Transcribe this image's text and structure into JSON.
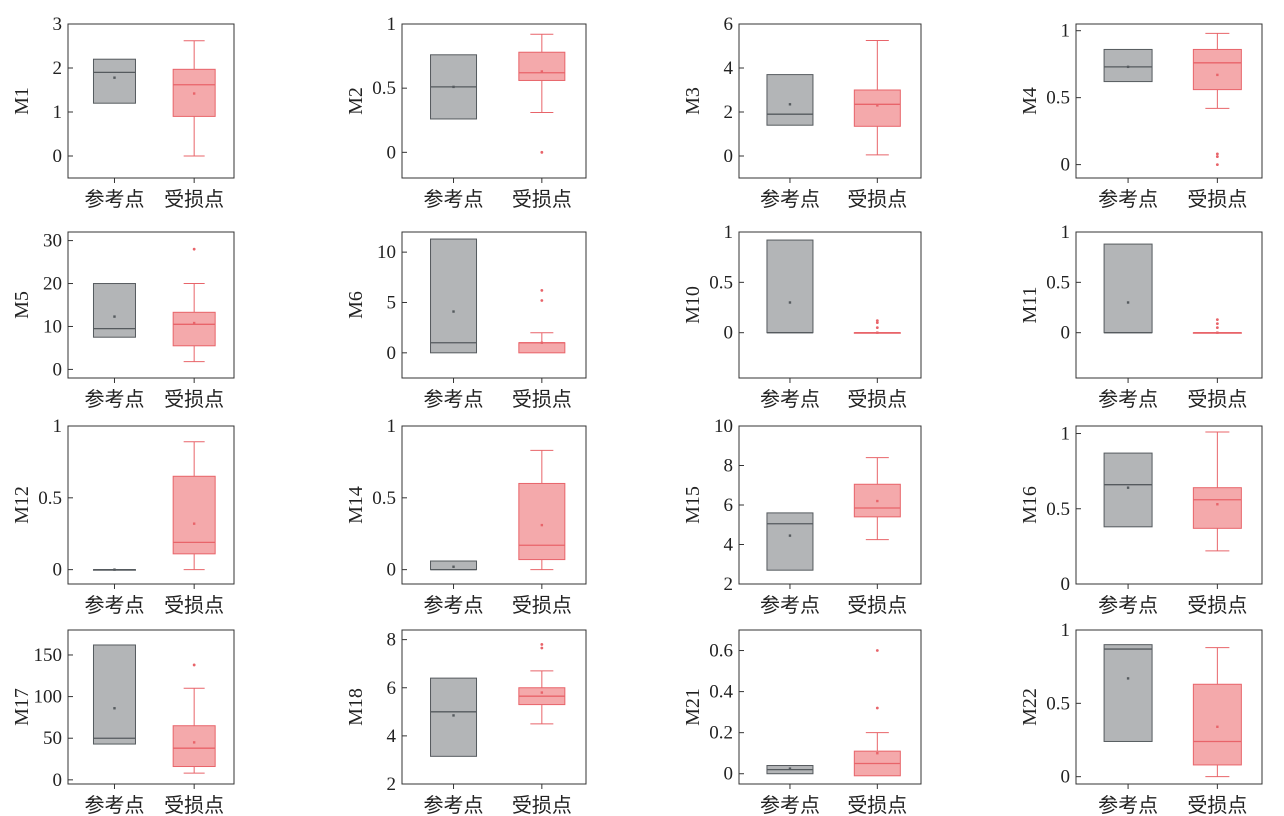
{
  "chart_data": {
    "type": "box",
    "colors": {
      "ref_fill": "#b3b5b7",
      "ref_line": "#555a5e",
      "dmg_fill": "#f4a9ab",
      "dmg_line": "#e8646a",
      "axis": "#333333"
    },
    "categories": [
      "参考点",
      "受损点"
    ],
    "panels": [
      {
        "ylabel": "M1",
        "ylim": [
          -0.5,
          3
        ],
        "yticks": [
          0,
          1,
          2,
          3
        ],
        "boxes": [
          {
            "q1": 1.2,
            "median": 1.9,
            "q3": 2.2,
            "mean": 1.78,
            "min": null,
            "max": null,
            "outliers": []
          },
          {
            "q1": 0.9,
            "median": 1.62,
            "q3": 1.97,
            "mean": 1.42,
            "min": 0.0,
            "max": 2.62,
            "outliers": []
          }
        ]
      },
      {
        "ylabel": "M2",
        "ylim": [
          -0.2,
          1.0
        ],
        "yticks": [
          0,
          0.5,
          1.0
        ],
        "boxes": [
          {
            "q1": 0.26,
            "median": 0.51,
            "q3": 0.76,
            "mean": 0.51,
            "min": null,
            "max": null,
            "outliers": []
          },
          {
            "q1": 0.56,
            "median": 0.62,
            "q3": 0.78,
            "mean": 0.63,
            "min": 0.31,
            "max": 0.92,
            "outliers": [
              0.0
            ]
          }
        ]
      },
      {
        "ylabel": "M3",
        "ylim": [
          -1,
          6
        ],
        "yticks": [
          0,
          2,
          4,
          6
        ],
        "boxes": [
          {
            "q1": 1.4,
            "median": 1.9,
            "q3": 3.7,
            "mean": 2.35,
            "min": null,
            "max": null,
            "outliers": []
          },
          {
            "q1": 1.35,
            "median": 2.35,
            "q3": 3.0,
            "mean": 2.3,
            "min": 0.05,
            "max": 5.25,
            "outliers": []
          }
        ]
      },
      {
        "ylabel": "M4",
        "ylim": [
          -0.1,
          1.05
        ],
        "yticks": [
          0,
          0.5,
          1.0
        ],
        "boxes": [
          {
            "q1": 0.62,
            "median": 0.73,
            "q3": 0.86,
            "mean": 0.73,
            "min": null,
            "max": null,
            "outliers": []
          },
          {
            "q1": 0.56,
            "median": 0.76,
            "q3": 0.86,
            "mean": 0.67,
            "min": 0.42,
            "max": 0.98,
            "outliers": [
              0.08,
              0.06,
              0.0
            ]
          }
        ]
      },
      {
        "ylabel": "M5",
        "ylim": [
          -2,
          32
        ],
        "yticks": [
          0,
          10,
          20,
          30
        ],
        "boxes": [
          {
            "q1": 7.5,
            "median": 9.5,
            "q3": 20.0,
            "mean": 12.3,
            "min": null,
            "max": null,
            "outliers": []
          },
          {
            "q1": 5.5,
            "median": 10.5,
            "q3": 13.3,
            "mean": 10.8,
            "min": 1.8,
            "max": 20.0,
            "outliers": [
              28.0
            ]
          }
        ]
      },
      {
        "ylabel": "M6",
        "ylim": [
          -2.5,
          12
        ],
        "yticks": [
          0,
          5,
          10
        ],
        "boxes": [
          {
            "q1": 0.0,
            "median": 1.0,
            "q3": 11.3,
            "mean": 4.1,
            "min": null,
            "max": null,
            "outliers": []
          },
          {
            "q1": 0.0,
            "median": 1.0,
            "q3": 1.0,
            "mean": 1.0,
            "min": 0.0,
            "max": 2.0,
            "outliers": [
              5.2,
              6.2
            ]
          }
        ]
      },
      {
        "ylabel": "M10",
        "ylim": [
          -0.45,
          1.0
        ],
        "yticks": [
          0,
          0.5,
          1.0
        ],
        "boxes": [
          {
            "q1": 0.0,
            "median": 0.0,
            "q3": 0.92,
            "mean": 0.3,
            "min": null,
            "max": null,
            "outliers": []
          },
          {
            "q1": 0.0,
            "median": 0.0,
            "q3": 0.0,
            "mean": 0.0,
            "min": 0.0,
            "max": 0.0,
            "outliers": [
              0.05,
              0.1,
              0.12
            ]
          }
        ]
      },
      {
        "ylabel": "M11",
        "ylim": [
          -0.45,
          1.0
        ],
        "yticks": [
          0,
          0.5,
          1.0
        ],
        "boxes": [
          {
            "q1": 0.0,
            "median": 0.0,
            "q3": 0.88,
            "mean": 0.3,
            "min": null,
            "max": null,
            "outliers": []
          },
          {
            "q1": 0.0,
            "median": 0.0,
            "q3": 0.0,
            "mean": 0.0,
            "min": 0.0,
            "max": 0.0,
            "outliers": [
              0.05,
              0.09,
              0.13
            ]
          }
        ]
      },
      {
        "ylabel": "M12",
        "ylim": [
          -0.1,
          1.0
        ],
        "yticks": [
          0,
          0.5,
          1.0
        ],
        "boxes": [
          {
            "q1": 0.0,
            "median": 0.0,
            "q3": 0.0,
            "mean": 0.0,
            "min": null,
            "max": null,
            "outliers": []
          },
          {
            "q1": 0.11,
            "median": 0.19,
            "q3": 0.65,
            "mean": 0.32,
            "min": 0.0,
            "max": 0.89,
            "outliers": []
          }
        ]
      },
      {
        "ylabel": "M14",
        "ylim": [
          -0.1,
          1.0
        ],
        "yticks": [
          0,
          0.5,
          1.0
        ],
        "boxes": [
          {
            "q1": 0.0,
            "median": 0.0,
            "q3": 0.06,
            "mean": 0.02,
            "min": null,
            "max": null,
            "outliers": []
          },
          {
            "q1": 0.07,
            "median": 0.17,
            "q3": 0.6,
            "mean": 0.31,
            "min": 0.0,
            "max": 0.83,
            "outliers": []
          }
        ]
      },
      {
        "ylabel": "M15",
        "ylim": [
          2,
          10
        ],
        "yticks": [
          2,
          4,
          6,
          8,
          10
        ],
        "boxes": [
          {
            "q1": 2.7,
            "median": 5.05,
            "q3": 5.6,
            "mean": 4.45,
            "min": null,
            "max": null,
            "outliers": []
          },
          {
            "q1": 5.4,
            "median": 5.85,
            "q3": 7.05,
            "mean": 6.2,
            "min": 4.25,
            "max": 8.4,
            "outliers": []
          }
        ]
      },
      {
        "ylabel": "M16",
        "ylim": [
          0,
          1.05
        ],
        "yticks": [
          0,
          0.5,
          1.0
        ],
        "boxes": [
          {
            "q1": 0.38,
            "median": 0.66,
            "q3": 0.87,
            "mean": 0.64,
            "min": null,
            "max": null,
            "outliers": []
          },
          {
            "q1": 0.37,
            "median": 0.56,
            "q3": 0.64,
            "mean": 0.53,
            "min": 0.22,
            "max": 1.01,
            "outliers": []
          }
        ]
      },
      {
        "ylabel": "M17",
        "ylim": [
          -5,
          180
        ],
        "yticks": [
          0,
          50,
          100,
          150
        ],
        "boxes": [
          {
            "q1": 43,
            "median": 50,
            "q3": 162,
            "mean": 86,
            "min": null,
            "max": null,
            "outliers": []
          },
          {
            "q1": 16,
            "median": 38,
            "q3": 65,
            "mean": 45,
            "min": 8,
            "max": 110,
            "outliers": [
              138
            ]
          }
        ]
      },
      {
        "ylabel": "M18",
        "ylim": [
          2,
          8.4
        ],
        "yticks": [
          2,
          4,
          6,
          8
        ],
        "boxes": [
          {
            "q1": 3.15,
            "median": 5.0,
            "q3": 6.4,
            "mean": 4.85,
            "min": null,
            "max": null,
            "outliers": []
          },
          {
            "q1": 5.3,
            "median": 5.65,
            "q3": 6.0,
            "mean": 5.8,
            "min": 4.5,
            "max": 6.7,
            "outliers": [
              7.65,
              7.8
            ]
          }
        ]
      },
      {
        "ylabel": "M21",
        "ylim": [
          -0.05,
          0.7
        ],
        "yticks": [
          0,
          0.2,
          0.4,
          0.6
        ],
        "boxes": [
          {
            "q1": 0.0,
            "median": 0.02,
            "q3": 0.04,
            "mean": 0.025,
            "min": null,
            "max": null,
            "outliers": []
          },
          {
            "q1": -0.01,
            "median": 0.05,
            "q3": 0.11,
            "mean": 0.1,
            "min": -0.01,
            "max": 0.2,
            "outliers": [
              0.32,
              0.6
            ]
          }
        ]
      },
      {
        "ylabel": "M22",
        "ylim": [
          -0.05,
          1.0
        ],
        "yticks": [
          0,
          0.5,
          1.0
        ],
        "boxes": [
          {
            "q1": 0.24,
            "median": 0.87,
            "q3": 0.9,
            "mean": 0.67,
            "min": null,
            "max": null,
            "outliers": []
          },
          {
            "q1": 0.08,
            "median": 0.24,
            "q3": 0.63,
            "mean": 0.34,
            "min": 0.0,
            "max": 0.88,
            "outliers": []
          }
        ]
      }
    ]
  }
}
